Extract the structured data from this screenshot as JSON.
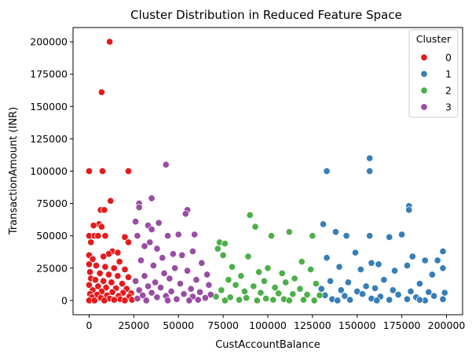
{
  "chart_data": {
    "type": "scatter",
    "title": "Cluster Distribution in Reduced Feature Space",
    "xlabel": "CustAccountBalance",
    "ylabel": "TransactionAmount (INR)",
    "xlim": [
      -9000,
      209000
    ],
    "ylim": [
      -11000,
      211000
    ],
    "x_ticks": [
      0,
      25000,
      50000,
      75000,
      100000,
      125000,
      150000,
      175000,
      200000
    ],
    "y_ticks": [
      0,
      25000,
      50000,
      75000,
      100000,
      125000,
      150000,
      175000,
      200000
    ],
    "grid": false,
    "legend": {
      "title": "Cluster",
      "position": "top-right",
      "entries": [
        {
          "label": "0",
          "color": "#e41a1c"
        },
        {
          "label": "1",
          "color": "#377eb8"
        },
        {
          "label": "2",
          "color": "#4daf4a"
        },
        {
          "label": "3",
          "color": "#984ea3"
        }
      ]
    },
    "series": [
      {
        "name": "0",
        "color": "#e41a1c",
        "points": [
          [
            11500,
            200000
          ],
          [
            7000,
            161000
          ],
          [
            0,
            100000
          ],
          [
            7500,
            100000
          ],
          [
            22000,
            100000
          ],
          [
            12000,
            77000
          ],
          [
            6500,
            70000
          ],
          [
            8500,
            70000
          ],
          [
            5500,
            59000
          ],
          [
            2500,
            58000
          ],
          [
            7000,
            57000
          ],
          [
            20000,
            49000
          ],
          [
            0,
            50000
          ],
          [
            3000,
            50000
          ],
          [
            5000,
            50000
          ],
          [
            9000,
            50000
          ],
          [
            1000,
            45000
          ],
          [
            22000,
            45000
          ],
          [
            13000,
            38000
          ],
          [
            11000,
            36000
          ],
          [
            16000,
            37000
          ],
          [
            0,
            35000
          ],
          [
            8000,
            34000
          ],
          [
            2000,
            32000
          ],
          [
            17000,
            30000
          ],
          [
            0,
            28000
          ],
          [
            4000,
            27000
          ],
          [
            9000,
            26000
          ],
          [
            14000,
            25000
          ],
          [
            20000,
            24000
          ],
          [
            500,
            22000
          ],
          [
            6000,
            21000
          ],
          [
            11000,
            20000
          ],
          [
            16000,
            19000
          ],
          [
            22000,
            18000
          ],
          [
            1000,
            17000
          ],
          [
            3500,
            16000
          ],
          [
            8000,
            15000
          ],
          [
            12500,
            14000
          ],
          [
            18500,
            13000
          ],
          [
            0,
            12000
          ],
          [
            5000,
            11000
          ],
          [
            9500,
            10000
          ],
          [
            15000,
            9500
          ],
          [
            21000,
            9000
          ],
          [
            2000,
            8000
          ],
          [
            7000,
            7000
          ],
          [
            13000,
            6500
          ],
          [
            19000,
            6000
          ],
          [
            23500,
            5500
          ],
          [
            500,
            5000
          ],
          [
            4500,
            4500
          ],
          [
            10000,
            4000
          ],
          [
            16500,
            3500
          ],
          [
            22500,
            3000
          ],
          [
            1500,
            2500
          ],
          [
            6500,
            2000
          ],
          [
            11500,
            1500
          ],
          [
            17500,
            1000
          ],
          [
            24000,
            500
          ],
          [
            0,
            0
          ],
          [
            3000,
            0
          ],
          [
            8500,
            0
          ],
          [
            14000,
            500
          ],
          [
            20000,
            0
          ]
        ]
      },
      {
        "name": "1",
        "color": "#377eb8",
        "points": [
          [
            157000,
            110000
          ],
          [
            133000,
            100000
          ],
          [
            157000,
            100000
          ],
          [
            179000,
            73000
          ],
          [
            179000,
            70000
          ],
          [
            131000,
            59000
          ],
          [
            138000,
            53000
          ],
          [
            144000,
            50000
          ],
          [
            157000,
            50000
          ],
          [
            175000,
            51000
          ],
          [
            168000,
            49000
          ],
          [
            198000,
            38000
          ],
          [
            149000,
            37000
          ],
          [
            181000,
            34000
          ],
          [
            133000,
            33000
          ],
          [
            188000,
            31000
          ],
          [
            195000,
            31000
          ],
          [
            158000,
            29000
          ],
          [
            162000,
            28000
          ],
          [
            178000,
            27000
          ],
          [
            140000,
            26000
          ],
          [
            152000,
            24000
          ],
          [
            171000,
            23000
          ],
          [
            198000,
            25000
          ],
          [
            192000,
            20000
          ],
          [
            135000,
            15000
          ],
          [
            145000,
            14000
          ],
          [
            165000,
            16000
          ],
          [
            185000,
            13000
          ],
          [
            155000,
            11000
          ],
          [
            130000,
            9000
          ],
          [
            141000,
            8000
          ],
          [
            150000,
            7000
          ],
          [
            160000,
            9500
          ],
          [
            170000,
            8000
          ],
          [
            180000,
            7000
          ],
          [
            190000,
            6500
          ],
          [
            199000,
            6000
          ],
          [
            132000,
            4000
          ],
          [
            143000,
            3500
          ],
          [
            153000,
            5000
          ],
          [
            163000,
            3000
          ],
          [
            173000,
            4500
          ],
          [
            183000,
            2500
          ],
          [
            193000,
            3500
          ],
          [
            136000,
            1000
          ],
          [
            146000,
            500
          ],
          [
            158000,
            1500
          ],
          [
            168000,
            500
          ],
          [
            178000,
            1000
          ],
          [
            188000,
            0
          ],
          [
            198000,
            1000
          ],
          [
            139000,
            0
          ],
          [
            161000,
            0
          ],
          [
            185000,
            500
          ]
        ]
      },
      {
        "name": "2",
        "color": "#4daf4a",
        "points": [
          [
            90000,
            66000
          ],
          [
            93000,
            57000
          ],
          [
            112000,
            53000
          ],
          [
            102000,
            50000
          ],
          [
            125000,
            50000
          ],
          [
            73000,
            45000
          ],
          [
            76000,
            44000
          ],
          [
            72000,
            40000
          ],
          [
            75000,
            35000
          ],
          [
            89000,
            34000
          ],
          [
            119000,
            30000
          ],
          [
            80000,
            26000
          ],
          [
            100000,
            25000
          ],
          [
            95000,
            22000
          ],
          [
            108000,
            21000
          ],
          [
            124000,
            24000
          ],
          [
            85000,
            19000
          ],
          [
            115000,
            17000
          ],
          [
            78000,
            16000
          ],
          [
            98000,
            15000
          ],
          [
            110000,
            14000
          ],
          [
            127000,
            13000
          ],
          [
            82000,
            12000
          ],
          [
            92000,
            11000
          ],
          [
            104000,
            10000
          ],
          [
            118000,
            9000
          ],
          [
            74000,
            8000
          ],
          [
            87000,
            7000
          ],
          [
            96000,
            6000
          ],
          [
            106000,
            5500
          ],
          [
            114000,
            5000
          ],
          [
            122000,
            4500
          ],
          [
            129000,
            4000
          ],
          [
            71000,
            3000
          ],
          [
            79000,
            2500
          ],
          [
            88000,
            2000
          ],
          [
            99000,
            1500
          ],
          [
            109000,
            1000
          ],
          [
            120000,
            500
          ],
          [
            126000,
            0
          ],
          [
            76000,
            0
          ],
          [
            84000,
            500
          ],
          [
            94000,
            0
          ],
          [
            103000,
            500
          ],
          [
            112000,
            0
          ]
        ]
      },
      {
        "name": "3",
        "color": "#984ea3",
        "points": [
          [
            43000,
            105000
          ],
          [
            35000,
            79000
          ],
          [
            28000,
            75000
          ],
          [
            28000,
            72000
          ],
          [
            55000,
            70000
          ],
          [
            54000,
            67000
          ],
          [
            26000,
            61000
          ],
          [
            39000,
            60000
          ],
          [
            33000,
            58000
          ],
          [
            35000,
            55000
          ],
          [
            50000,
            51000
          ],
          [
            59000,
            51000
          ],
          [
            44000,
            50000
          ],
          [
            27000,
            50000
          ],
          [
            34000,
            45000
          ],
          [
            31000,
            42000
          ],
          [
            38000,
            40000
          ],
          [
            58000,
            38000
          ],
          [
            47000,
            36000
          ],
          [
            52000,
            35000
          ],
          [
            41000,
            33000
          ],
          [
            29000,
            31000
          ],
          [
            63000,
            29000
          ],
          [
            36000,
            27000
          ],
          [
            48000,
            25000
          ],
          [
            55000,
            23000
          ],
          [
            42000,
            21000
          ],
          [
            66000,
            20000
          ],
          [
            31000,
            19000
          ],
          [
            45000,
            17000
          ],
          [
            60000,
            16000
          ],
          [
            26000,
            15000
          ],
          [
            37000,
            14000
          ],
          [
            51000,
            13000
          ],
          [
            67000,
            12000
          ],
          [
            33000,
            11000
          ],
          [
            40000,
            10000
          ],
          [
            57000,
            9000
          ],
          [
            28000,
            8000
          ],
          [
            46000,
            7000
          ],
          [
            62000,
            6500
          ],
          [
            35000,
            6000
          ],
          [
            53000,
            5000
          ],
          [
            68000,
            4500
          ],
          [
            30000,
            4000
          ],
          [
            43000,
            3500
          ],
          [
            58000,
            3000
          ],
          [
            38000,
            2500
          ],
          [
            65000,
            2000
          ],
          [
            27000,
            1500
          ],
          [
            49000,
            1000
          ],
          [
            61000,
            500
          ],
          [
            32000,
            0
          ],
          [
            44000,
            0
          ],
          [
            56000,
            0
          ]
        ]
      }
    ]
  }
}
